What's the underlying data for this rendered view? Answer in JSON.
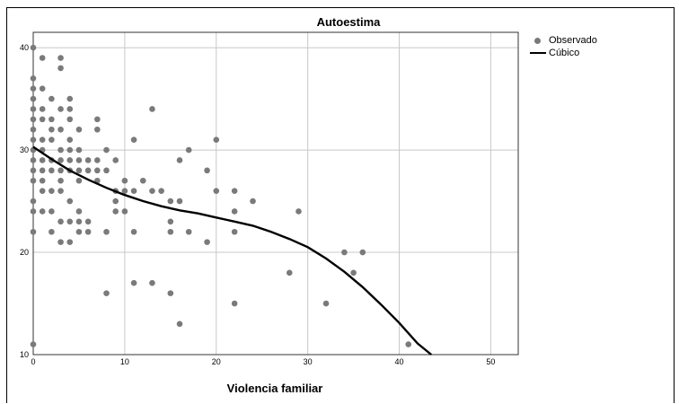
{
  "chart_data": {
    "type": "scatter",
    "title": "Autoestima",
    "xlabel": "Violencia familiar",
    "ylabel": "",
    "xlim": [
      0,
      53
    ],
    "ylim": [
      10,
      41.5
    ],
    "xticks": [
      0,
      10,
      20,
      30,
      40,
      50
    ],
    "yticks": [
      10,
      20,
      30,
      40
    ],
    "grid": true,
    "legend_position": "top-right, outside plot",
    "series": [
      {
        "name": "Observado",
        "kind": "points",
        "color": "#7a7a7a",
        "points": [
          [
            0,
            40
          ],
          [
            0,
            37
          ],
          [
            0,
            36
          ],
          [
            0,
            35
          ],
          [
            0,
            34
          ],
          [
            0,
            33
          ],
          [
            0,
            32
          ],
          [
            0,
            31
          ],
          [
            0,
            30
          ],
          [
            0,
            29
          ],
          [
            0,
            28
          ],
          [
            0,
            27
          ],
          [
            0,
            25
          ],
          [
            0,
            24
          ],
          [
            0,
            22
          ],
          [
            0,
            11
          ],
          [
            1,
            39
          ],
          [
            1,
            36
          ],
          [
            1,
            34
          ],
          [
            1,
            33
          ],
          [
            1,
            31
          ],
          [
            1,
            30
          ],
          [
            1,
            29
          ],
          [
            1,
            28
          ],
          [
            1,
            27
          ],
          [
            1,
            26
          ],
          [
            1,
            24
          ],
          [
            2,
            35
          ],
          [
            2,
            33
          ],
          [
            2,
            32
          ],
          [
            2,
            31
          ],
          [
            2,
            29
          ],
          [
            2,
            28
          ],
          [
            2,
            26
          ],
          [
            2,
            24
          ],
          [
            2,
            22
          ],
          [
            3,
            39
          ],
          [
            3,
            38
          ],
          [
            3,
            34
          ],
          [
            3,
            32
          ],
          [
            3,
            30
          ],
          [
            3,
            29
          ],
          [
            3,
            28
          ],
          [
            3,
            27
          ],
          [
            3,
            26
          ],
          [
            3,
            23
          ],
          [
            3,
            21
          ],
          [
            4,
            35
          ],
          [
            4,
            34
          ],
          [
            4,
            33
          ],
          [
            4,
            31
          ],
          [
            4,
            30
          ],
          [
            4,
            29
          ],
          [
            4,
            28
          ],
          [
            4,
            25
          ],
          [
            4,
            23
          ],
          [
            4,
            21
          ],
          [
            5,
            32
          ],
          [
            5,
            30
          ],
          [
            5,
            29
          ],
          [
            5,
            28
          ],
          [
            5,
            27
          ],
          [
            5,
            24
          ],
          [
            5,
            23
          ],
          [
            5,
            22
          ],
          [
            6,
            29
          ],
          [
            6,
            28
          ],
          [
            6,
            23
          ],
          [
            6,
            22
          ],
          [
            7,
            33
          ],
          [
            7,
            32
          ],
          [
            7,
            29
          ],
          [
            7,
            28
          ],
          [
            7,
            27
          ],
          [
            8,
            30
          ],
          [
            8,
            28
          ],
          [
            8,
            22
          ],
          [
            8,
            16
          ],
          [
            9,
            29
          ],
          [
            9,
            26
          ],
          [
            9,
            25
          ],
          [
            9,
            24
          ],
          [
            10,
            27
          ],
          [
            10,
            26
          ],
          [
            10,
            24
          ],
          [
            11,
            31
          ],
          [
            11,
            26
          ],
          [
            11,
            22
          ],
          [
            11,
            17
          ],
          [
            12,
            27
          ],
          [
            13,
            34
          ],
          [
            13,
            26
          ],
          [
            13,
            17
          ],
          [
            14,
            26
          ],
          [
            15,
            25
          ],
          [
            15,
            23
          ],
          [
            15,
            22
          ],
          [
            15,
            16
          ],
          [
            16,
            29
          ],
          [
            16,
            25
          ],
          [
            16,
            13
          ],
          [
            17,
            30
          ],
          [
            17,
            22
          ],
          [
            19,
            28
          ],
          [
            19,
            21
          ],
          [
            20,
            31
          ],
          [
            20,
            26
          ],
          [
            22,
            26
          ],
          [
            22,
            24
          ],
          [
            22,
            22
          ],
          [
            22,
            15
          ],
          [
            24,
            25
          ],
          [
            28,
            18
          ],
          [
            29,
            24
          ],
          [
            32,
            15
          ],
          [
            34,
            20
          ],
          [
            35,
            18
          ],
          [
            36,
            20
          ],
          [
            41,
            11
          ]
        ]
      },
      {
        "name": "Cúbico",
        "kind": "line",
        "color": "#000000",
        "x": [
          0,
          2,
          4,
          6,
          8,
          10,
          12,
          14,
          16,
          18,
          20,
          22,
          24,
          26,
          28,
          30,
          32,
          34,
          36,
          38,
          40,
          42,
          43.5
        ],
        "y": [
          30.3,
          29.1,
          28.0,
          27.1,
          26.3,
          25.6,
          25.0,
          24.5,
          24.1,
          23.8,
          23.4,
          23.0,
          22.6,
          22.0,
          21.3,
          20.5,
          19.4,
          18.1,
          16.6,
          14.9,
          13.1,
          11.1,
          10.0
        ]
      }
    ]
  }
}
